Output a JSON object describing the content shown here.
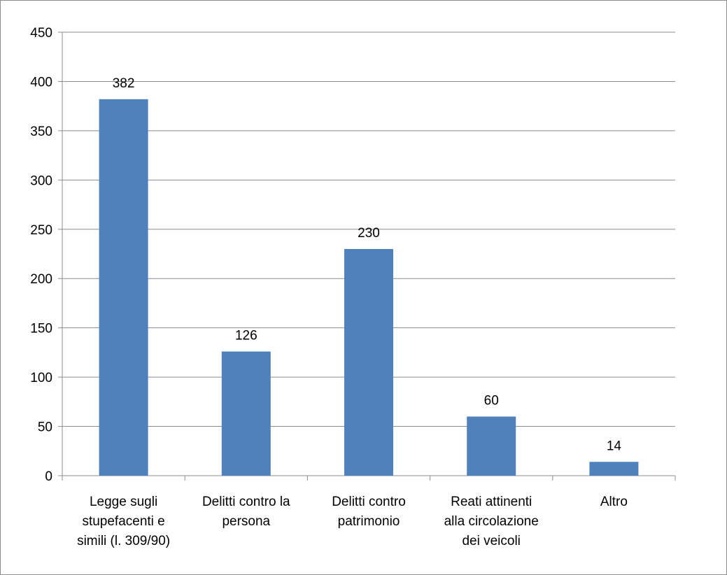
{
  "chart_data": {
    "type": "bar",
    "title": "",
    "xlabel": "",
    "ylabel": "",
    "ylim": [
      0,
      450
    ],
    "yticks": [
      0,
      50,
      100,
      150,
      200,
      250,
      300,
      350,
      400,
      450
    ],
    "grid": true,
    "legend": "none",
    "bar_color": "#4f81bd",
    "categories": [
      [
        "Legge sugli",
        "stupefacenti e",
        "simili (l. 309/90)"
      ],
      [
        "Delitti contro la",
        "persona"
      ],
      [
        "Delitti contro",
        "patrimonio"
      ],
      [
        "Reati attinenti",
        "alla circolazione",
        "dei veicoli"
      ],
      [
        "Altro"
      ]
    ],
    "values": [
      382,
      126,
      230,
      60,
      14
    ]
  }
}
